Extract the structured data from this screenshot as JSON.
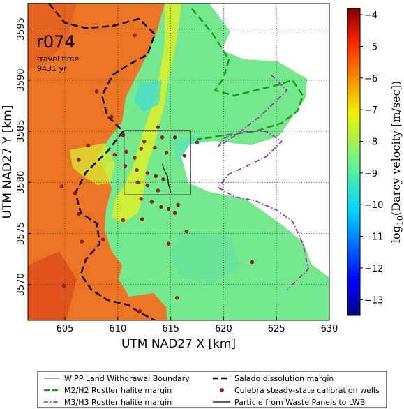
{
  "chart_data": {
    "type": "heatmap",
    "xlabel": "UTM NAD27 X [km]",
    "ylabel": "UTM NAD27 Y [km]",
    "xlim": [
      601.5,
      630
    ],
    "ylim": [
      3566.5,
      3597.5
    ],
    "x_ticks": [
      605,
      610,
      615,
      620,
      625,
      630
    ],
    "y_ticks": [
      3570,
      3575,
      3580,
      3585,
      3590,
      3595
    ],
    "grid": true,
    "annotation": {
      "run_id": "r074",
      "travel_time_label": "travel time",
      "travel_time_value": "9431 yr"
    },
    "colorbar": {
      "label": "log10(Darcy velocity [m/sec])",
      "label_base": "log",
      "label_sub": "10",
      "label_rest": "(Darcy velocity [m/sec])",
      "range": [
        -13.5,
        -3.8
      ],
      "ticks": [
        -4,
        -5,
        -6,
        -7,
        -8,
        -9,
        -10,
        -11,
        -12,
        -13
      ],
      "colormap": "jet"
    },
    "legend": {
      "placement": "bottom",
      "entries": [
        {
          "label": "WIPP Land Withdrawal Boundary",
          "style": "thin-line",
          "color": "#555555"
        },
        {
          "label": "Salado dissolution margin",
          "style": "dashed",
          "color": "#000000"
        },
        {
          "label": "M2/H2 Rustler halite margin",
          "style": "dashed",
          "color": "#1a9a1a"
        },
        {
          "label": "Culebra steady-state calibration wells",
          "style": "marker",
          "color": "#b01818"
        },
        {
          "label": "M3/H3 Rustler halite margin",
          "style": "dash-dot",
          "color": "#a030b0"
        },
        {
          "label": "Particle from Waste Panels to LWB",
          "style": "line",
          "color": "#000000"
        }
      ]
    },
    "series": [
      {
        "name": "WIPP Land Withdrawal Boundary",
        "x": [
          610.6,
          616.9,
          616.9,
          610.6,
          610.6
        ],
        "y": [
          3578.8,
          3578.8,
          3585.1,
          3585.1,
          3578.8
        ]
      },
      {
        "name": "Salado dissolution margin",
        "x": [
          603.5,
          605,
          607,
          609.5,
          612,
          613.5,
          612.8,
          611,
          609.5,
          608.5,
          609,
          610.5,
          609,
          607,
          606,
          606.5,
          608,
          608.3,
          607,
          606.5,
          607.5,
          609,
          611,
          612,
          613.5
        ],
        "y": [
          3597.5,
          3595.6,
          3595.1,
          3595.3,
          3596,
          3594.5,
          3592.5,
          3591.5,
          3590.5,
          3588.5,
          3586.5,
          3585,
          3583,
          3581,
          3579,
          3577,
          3576,
          3574,
          3572.5,
          3571,
          3569.5,
          3568.5,
          3568,
          3567.3,
          3566.5
        ]
      },
      {
        "name": "M2/H2 Rustler halite margin",
        "x": [
          617,
          619,
          620.5,
          620,
          619.2,
          621,
          623,
          625,
          626.5,
          627.5,
          627,
          625.5,
          623,
          620,
          617.5
        ],
        "y": [
          3597,
          3594.5,
          3592,
          3590.2,
          3589,
          3588.5,
          3589,
          3589.5,
          3590,
          3588.5,
          3587,
          3585.8,
          3585,
          3584.6,
          3584.2
        ]
      },
      {
        "name": "M3/H3 Rustler halite margin",
        "x": [
          624.5,
          626,
          623.5,
          621,
          619.5,
          620,
          622,
          624,
          625.5,
          624,
          622,
          620.5,
          619.5,
          621,
          623,
          625,
          626.5,
          627.5,
          628,
          626
        ],
        "y": [
          3590.5,
          3589,
          3586.5,
          3584.5,
          3583.5,
          3584.3,
          3585,
          3585,
          3584,
          3582.5,
          3581.5,
          3580.8,
          3579.5,
          3578.6,
          3578.2,
          3577.3,
          3576.2,
          3574,
          3571.5,
          3569.5
        ]
      },
      {
        "name": "Particle from Waste Panels to LWB",
        "x": [
          614.2,
          614.4,
          614.7,
          614.8,
          615
        ],
        "y": [
          3581.8,
          3581.2,
          3580.6,
          3579.8,
          3579
        ]
      }
    ],
    "wells": {
      "x": [
        611.6,
        608.0,
        609.4,
        613.8,
        610.5,
        612.5,
        614.2,
        615.4,
        607.2,
        606.3,
        609.7,
        610.8,
        611.6,
        612.2,
        613.5,
        614.6,
        616.3,
        617.5,
        610.7,
        611.8,
        612.8,
        613.6,
        614.3,
        611.9,
        612.8,
        613.8,
        612.2,
        613.2,
        614.1,
        614.8,
        605.9,
        604.7,
        606.3,
        610.5,
        612.3,
        615.7,
        615.4,
        616.5,
        614.8,
        608.6,
        606.6,
        622.7,
        604.9,
        612.1,
        615.6
      ],
      "y": [
        3594.4,
        3588.9,
        3586.4,
        3585.4,
        3584.6,
        3584.0,
        3584.4,
        3584.4,
        3583.6,
        3582.2,
        3582.7,
        3583.0,
        3582.4,
        3583.3,
        3583.4,
        3582.9,
        3582.6,
        3583.9,
        3581.6,
        3581.2,
        3580.9,
        3580.6,
        3580.3,
        3580.0,
        3579.7,
        3579.2,
        3578.4,
        3578.1,
        3577.6,
        3577.4,
        3578.9,
        3579.6,
        3576.9,
        3576.3,
        3576.4,
        3577.8,
        3577.0,
        3575.2,
        3574.0,
        3574.4,
        3574.2,
        3572.2,
        3569.9,
        3567.4,
        3568.7
      ]
    }
  }
}
